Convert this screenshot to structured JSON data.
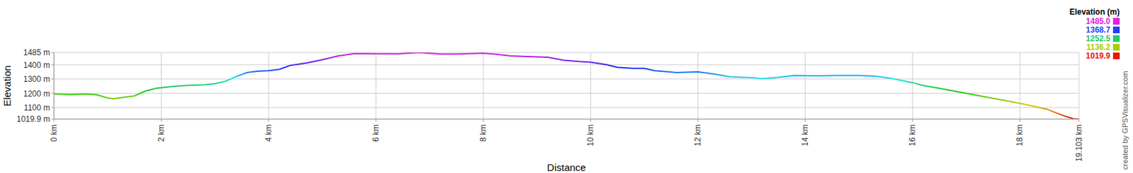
{
  "chart_data": {
    "type": "line",
    "x_label": "Distance",
    "y_label": "Elevation",
    "x": [
      0,
      0.3,
      0.6,
      0.8,
      1.0,
      1.1,
      1.3,
      1.5,
      1.7,
      1.9,
      2.2,
      2.5,
      2.8,
      3.0,
      3.2,
      3.4,
      3.6,
      3.8,
      4.0,
      4.2,
      4.4,
      4.7,
      5.0,
      5.3,
      5.6,
      6.0,
      6.4,
      6.8,
      7.2,
      7.5,
      8.0,
      8.2,
      8.5,
      9.0,
      9.2,
      9.5,
      9.8,
      10.0,
      10.3,
      10.5,
      10.8,
      11.0,
      11.2,
      11.6,
      12.0,
      12.3,
      12.6,
      13.0,
      13.2,
      13.5,
      13.8,
      14.2,
      14.6,
      15.0,
      15.3,
      15.6,
      16.0,
      16.2,
      16.5,
      17.0,
      17.5,
      18.0,
      18.5,
      18.7,
      18.85,
      19.0,
      19.103
    ],
    "values": [
      1195,
      1192,
      1195,
      1190,
      1168,
      1162,
      1172,
      1182,
      1215,
      1235,
      1248,
      1256,
      1260,
      1268,
      1285,
      1318,
      1345,
      1355,
      1358,
      1368,
      1395,
      1412,
      1435,
      1462,
      1478,
      1477,
      1476,
      1485,
      1475,
      1474,
      1480,
      1474,
      1462,
      1455,
      1452,
      1432,
      1422,
      1418,
      1400,
      1382,
      1375,
      1375,
      1358,
      1345,
      1350,
      1335,
      1315,
      1310,
      1302,
      1312,
      1325,
      1322,
      1325,
      1325,
      1320,
      1305,
      1275,
      1255,
      1235,
      1200,
      1165,
      1130,
      1090,
      1060,
      1040,
      1022,
      1019.9
    ],
    "xlim": [
      0,
      19.103
    ],
    "ylim": [
      1019.9,
      1485
    ],
    "xticks": [
      {
        "value": 0,
        "label": "0 km"
      },
      {
        "value": 2,
        "label": "2 km"
      },
      {
        "value": 4,
        "label": "4 km"
      },
      {
        "value": 6,
        "label": "6 km"
      },
      {
        "value": 8,
        "label": "8 km"
      },
      {
        "value": 10,
        "label": "10 km"
      },
      {
        "value": 12,
        "label": "12 km"
      },
      {
        "value": 14,
        "label": "14 km"
      },
      {
        "value": 16,
        "label": "16 km"
      },
      {
        "value": 18,
        "label": "18 km"
      },
      {
        "value": 19.103,
        "label": "19.103 km"
      }
    ],
    "yticks": [
      {
        "value": 1019.9,
        "label": "1019.9 m"
      },
      {
        "value": 1100,
        "label": "1100 m"
      },
      {
        "value": 1200,
        "label": "1200 m"
      },
      {
        "value": 1300,
        "label": "1300 m"
      },
      {
        "value": 1400,
        "label": "1400 m"
      },
      {
        "value": 1485,
        "label": "1485 m"
      }
    ],
    "grid": true,
    "color_scale": {
      "title": "Elevation (m)",
      "values": [
        {
          "value": 1485,
          "label": "1485.0"
        },
        1368.7,
        1252.5,
        1136.2,
        1019.9
      ],
      "colors": [
        "#e020e0",
        "#1f3fff",
        "#22cc66",
        "#aacc00",
        "#ee1111"
      ]
    },
    "annotation": "created by GPSVisualizer.com"
  }
}
